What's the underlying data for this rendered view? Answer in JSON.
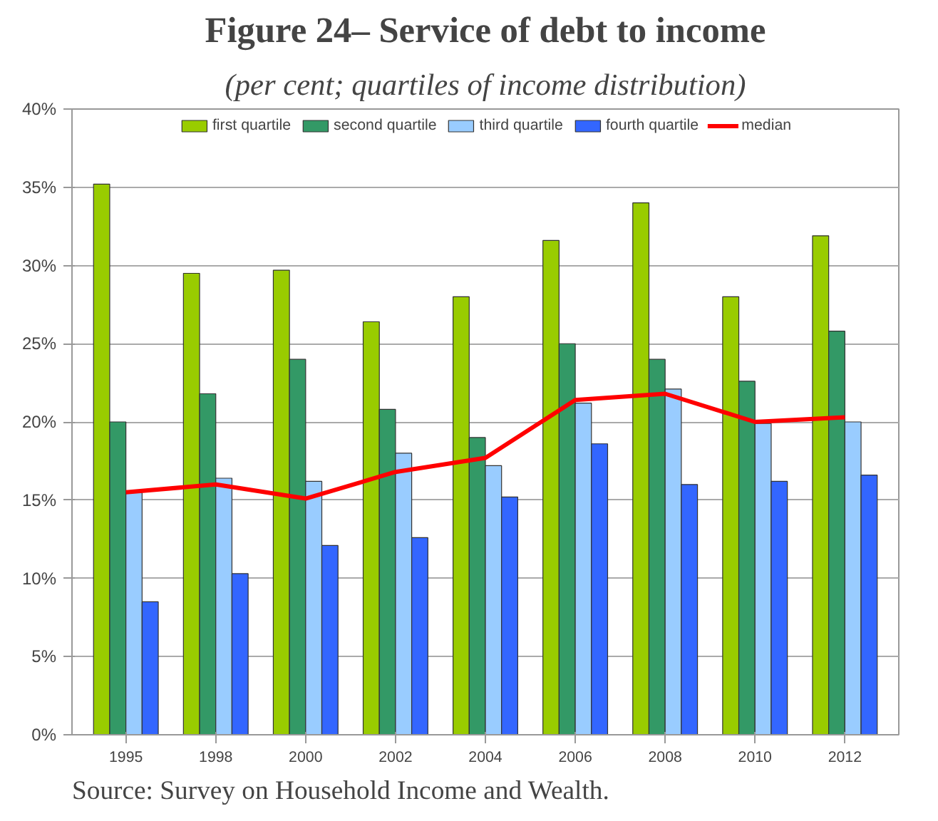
{
  "chart_data": {
    "type": "bar",
    "title": "Figure 24– Service of debt to income",
    "subtitle": "(per cent; quartiles of income distribution)",
    "categories": [
      "1995",
      "1998",
      "2000",
      "2002",
      "2004",
      "2006",
      "2008",
      "2010",
      "2012"
    ],
    "series": [
      {
        "name": "first quartile",
        "color": "#99cc00",
        "values": [
          35.2,
          29.5,
          29.7,
          26.4,
          28.0,
          31.6,
          34.0,
          28.0,
          31.9
        ]
      },
      {
        "name": "second quartile",
        "color": "#339966",
        "values": [
          20.0,
          21.8,
          24.0,
          20.8,
          19.0,
          25.0,
          24.0,
          22.6,
          25.8
        ]
      },
      {
        "name": "third quartile",
        "color": "#99ccff",
        "values": [
          15.5,
          16.4,
          16.2,
          18.0,
          17.2,
          21.2,
          22.1,
          19.9,
          20.0
        ]
      },
      {
        "name": "fourth quartile",
        "color": "#3366ff",
        "values": [
          8.5,
          10.3,
          12.1,
          12.6,
          15.2,
          18.6,
          16.0,
          16.2,
          16.6
        ]
      },
      {
        "name": "median",
        "color": "#ff0000",
        "type": "line",
        "values": [
          15.5,
          16.0,
          15.1,
          16.8,
          17.7,
          21.4,
          21.8,
          20.0,
          20.3
        ]
      }
    ],
    "ylim": [
      0,
      40
    ],
    "yticks": [
      {
        "value": 0,
        "label": "0%"
      },
      {
        "value": 5,
        "label": "5%"
      },
      {
        "value": 10,
        "label": "10%"
      },
      {
        "value": 15,
        "label": "15%"
      },
      {
        "value": 20,
        "label": "20%"
      },
      {
        "value": 25,
        "label": "25%"
      },
      {
        "value": 30,
        "label": "30%"
      },
      {
        "value": 35,
        "label": "35%"
      },
      {
        "value": 40,
        "label": "40%"
      }
    ],
    "grid": "y",
    "legend": "top",
    "annotations": [
      "Source: Survey on Household Income and Wealth."
    ]
  }
}
